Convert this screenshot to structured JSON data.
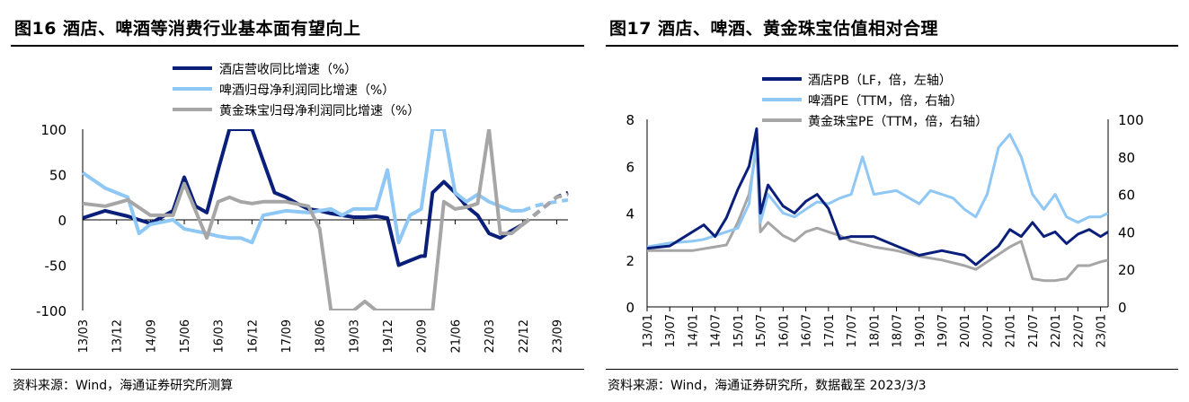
{
  "charts": [
    {
      "title": "图16 酒店、啤酒等消费行业基本面有望向上",
      "source": "资料来源：Wind，海通证券研究所测算",
      "colors": {
        "hotel": "#0a1f7a",
        "beer": "#8fc7f5",
        "jewelry": "#a6a6a6"
      }
    },
    {
      "title": "图17 酒店、啤酒、黄金珠宝估值相对合理",
      "source": "资料来源：Wind，海通证券研究所，数据截至 2023/3/3",
      "colors": {
        "hotel": "#0a1f7a",
        "beer": "#8fc7f5",
        "jewelry": "#a6a6a6"
      }
    }
  ],
  "chart_data": [
    {
      "type": "line",
      "title": "图16 酒店、啤酒等消费行业基本面有望向上",
      "ylim": [
        -100,
        100
      ],
      "yticks": [
        "100",
        "50",
        "0",
        "-50",
        "-100"
      ],
      "xticks": [
        "13/03",
        "13/12",
        "14/09",
        "15/06",
        "16/03",
        "16/12",
        "17/09",
        "18/06",
        "19/03",
        "19/12",
        "20/09",
        "21/06",
        "22/03",
        "22/12",
        "23/09"
      ],
      "x_start": "2013/03",
      "forecast_from": "2022/12",
      "series": [
        {
          "name": "酒店营收同比增速（%）",
          "dates": [
            "2013/03",
            "2013/09",
            "2014/03",
            "2014/09",
            "2015/03",
            "2015/06",
            "2015/09",
            "2015/12",
            "2016/03",
            "2016/06",
            "2016/09",
            "2016/12",
            "2017/03",
            "2017/06",
            "2017/09",
            "2017/12",
            "2018/03",
            "2018/06",
            "2018/09",
            "2018/12",
            "2019/03",
            "2019/06",
            "2019/09",
            "2019/12",
            "2020/03",
            "2020/06",
            "2020/09",
            "2020/10",
            "2020/12",
            "2021/03",
            "2021/06",
            "2021/09",
            "2021/12",
            "2022/03",
            "2022/06",
            "2022/09",
            "2022/12",
            "2023/03",
            "2023/06",
            "2023/09",
            "2023/12"
          ],
          "values": [
            2,
            10,
            4,
            -4,
            10,
            47,
            15,
            8,
            55,
            100,
            100,
            100,
            65,
            30,
            25,
            18,
            12,
            10,
            7,
            5,
            3,
            3,
            4,
            2,
            -50,
            -45,
            -40,
            -40,
            30,
            42,
            30,
            15,
            5,
            -15,
            -20,
            -12,
            -5,
            5,
            15,
            25,
            30
          ]
        },
        {
          "name": "啤酒归母净利润同比增速（%）",
          "dates": [
            "2013/03",
            "2013/09",
            "2014/03",
            "2014/06",
            "2014/09",
            "2015/03",
            "2015/06",
            "2015/12",
            "2016/03",
            "2016/06",
            "2016/09",
            "2016/12",
            "2017/03",
            "2017/09",
            "2018/03",
            "2018/06",
            "2018/09",
            "2018/12",
            "2019/03",
            "2019/09",
            "2019/12",
            "2020/03",
            "2020/06",
            "2020/09",
            "2020/12",
            "2021/03",
            "2021/06",
            "2021/09",
            "2021/12",
            "2022/03",
            "2022/06",
            "2022/09",
            "2022/12",
            "2023/03",
            "2023/06",
            "2023/09",
            "2023/12"
          ],
          "values": [
            52,
            35,
            25,
            -15,
            -5,
            0,
            -10,
            -15,
            -18,
            -20,
            -20,
            -25,
            5,
            10,
            8,
            10,
            12,
            5,
            12,
            12,
            55,
            -25,
            5,
            12,
            100,
            100,
            30,
            20,
            28,
            20,
            15,
            10,
            10,
            15,
            18,
            20,
            22
          ]
        },
        {
          "name": "黄金珠宝归母净利润同比增速（%）",
          "dates": [
            "2013/03",
            "2013/09",
            "2014/03",
            "2014/09",
            "2015/03",
            "2015/06",
            "2015/09",
            "2015/12",
            "2016/03",
            "2016/06",
            "2016/09",
            "2016/12",
            "2017/03",
            "2017/09",
            "2018/03",
            "2018/06",
            "2018/09",
            "2018/12",
            "2019/03",
            "2019/06",
            "2019/09",
            "2019/12",
            "2020/03",
            "2020/06",
            "2020/09",
            "2020/12",
            "2021/03",
            "2021/06",
            "2021/09",
            "2021/12",
            "2022/03",
            "2022/06",
            "2022/09",
            "2022/12",
            "2023/03",
            "2023/06",
            "2023/09",
            "2023/12"
          ],
          "values": [
            18,
            15,
            22,
            5,
            5,
            40,
            10,
            -20,
            20,
            25,
            20,
            18,
            20,
            20,
            15,
            -10,
            -100,
            -100,
            -100,
            -90,
            -100,
            -100,
            -100,
            -100,
            -100,
            -100,
            20,
            12,
            14,
            18,
            100,
            -15,
            -15,
            -5,
            5,
            15,
            25,
            28
          ]
        }
      ]
    },
    {
      "type": "line",
      "title": "图17 酒店、啤酒、黄金珠宝估值相对合理",
      "ylim_left": [
        0,
        8
      ],
      "ylim_right": [
        0,
        100
      ],
      "yticks_left": [
        "8",
        "6",
        "4",
        "2",
        "0"
      ],
      "yticks_right": [
        "100",
        "80",
        "60",
        "40",
        "20",
        "0"
      ],
      "xticks": [
        "13/01",
        "13/07",
        "14/01",
        "14/07",
        "15/01",
        "15/07",
        "16/01",
        "16/07",
        "17/01",
        "17/07",
        "18/01",
        "18/07",
        "19/01",
        "19/07",
        "20/01",
        "20/07",
        "21/01",
        "21/07",
        "22/01",
        "22/07",
        "23/01"
      ],
      "x_start": "2013/01",
      "series": [
        {
          "name": "酒店PB（LF，倍，左轴）",
          "axis": "left",
          "dates": [
            "2013/01",
            "2013/07",
            "2014/01",
            "2014/04",
            "2014/07",
            "2014/10",
            "2015/01",
            "2015/04",
            "2015/06",
            "2015/07",
            "2015/09",
            "2016/01",
            "2016/04",
            "2016/07",
            "2016/10",
            "2017/01",
            "2017/04",
            "2017/07",
            "2018/01",
            "2018/07",
            "2019/01",
            "2019/04",
            "2019/07",
            "2020/01",
            "2020/04",
            "2020/07",
            "2020/10",
            "2021/01",
            "2021/04",
            "2021/07",
            "2021/10",
            "2022/01",
            "2022/04",
            "2022/07",
            "2022/10",
            "2023/01",
            "2023/03"
          ],
          "values": [
            2.5,
            2.6,
            3.2,
            3.5,
            3.0,
            3.8,
            5.0,
            6.0,
            7.6,
            4.0,
            5.2,
            4.3,
            4.0,
            4.5,
            4.8,
            4.2,
            2.9,
            3.0,
            3.0,
            2.6,
            2.2,
            2.3,
            2.4,
            2.2,
            1.8,
            2.2,
            2.6,
            3.3,
            3.0,
            3.6,
            3.0,
            3.2,
            2.7,
            3.1,
            3.3,
            3.0,
            3.2
          ]
        },
        {
          "name": "啤酒PE（TTM，倍，右轴）",
          "axis": "right",
          "dates": [
            "2013/01",
            "2013/07",
            "2014/01",
            "2014/04",
            "2014/07",
            "2014/10",
            "2015/01",
            "2015/04",
            "2015/06",
            "2015/07",
            "2015/09",
            "2016/01",
            "2016/04",
            "2016/07",
            "2016/10",
            "2017/01",
            "2017/04",
            "2017/07",
            "2017/10",
            "2018/01",
            "2018/07",
            "2019/01",
            "2019/04",
            "2019/07",
            "2019/10",
            "2020/01",
            "2020/04",
            "2020/07",
            "2020/10",
            "2021/01",
            "2021/04",
            "2021/07",
            "2021/10",
            "2022/01",
            "2022/04",
            "2022/07",
            "2022/10",
            "2023/01",
            "2023/03"
          ],
          "values": [
            32,
            34,
            35,
            36,
            38,
            40,
            42,
            55,
            90,
            45,
            60,
            50,
            48,
            52,
            56,
            55,
            58,
            60,
            80,
            60,
            62,
            55,
            62,
            60,
            58,
            52,
            48,
            60,
            85,
            92,
            80,
            60,
            52,
            60,
            48,
            45,
            48,
            48,
            50
          ]
        },
        {
          "name": "黄金珠宝PE（TTM，倍，右轴）",
          "axis": "right",
          "dates": [
            "2013/01",
            "2013/07",
            "2014/01",
            "2014/04",
            "2014/07",
            "2014/10",
            "2015/01",
            "2015/04",
            "2015/06",
            "2015/07",
            "2015/09",
            "2016/01",
            "2016/04",
            "2016/07",
            "2016/10",
            "2017/01",
            "2017/04",
            "2017/07",
            "2018/01",
            "2018/07",
            "2019/01",
            "2019/07",
            "2020/01",
            "2020/04",
            "2020/07",
            "2020/10",
            "2021/01",
            "2021/04",
            "2021/07",
            "2021/10",
            "2022/01",
            "2022/04",
            "2022/07",
            "2022/10",
            "2023/01",
            "2023/03"
          ],
          "values": [
            30,
            30,
            30,
            31,
            32,
            33,
            45,
            60,
            85,
            40,
            45,
            38,
            35,
            40,
            42,
            40,
            38,
            35,
            32,
            30,
            27,
            25,
            22,
            20,
            24,
            28,
            32,
            35,
            15,
            14,
            14,
            15,
            22,
            22,
            24,
            25
          ]
        }
      ]
    }
  ]
}
